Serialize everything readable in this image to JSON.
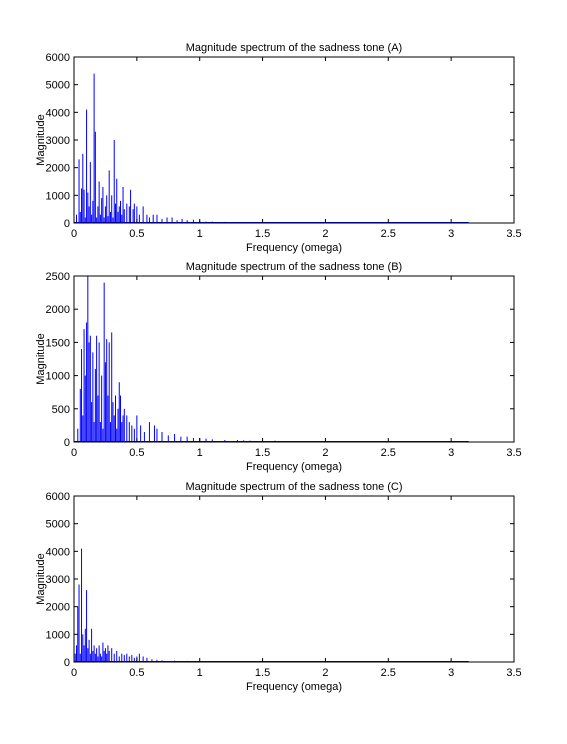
{
  "chart_data": [
    {
      "type": "bar",
      "title": "Magnitude spectrum of the sadness tone (A)",
      "xlabel": "Frequency (omega)",
      "ylabel": "Magnitude",
      "xlim": [
        0,
        3.5
      ],
      "ylim": [
        0,
        6000
      ],
      "xticks": [
        "0",
        "0.5",
        "1",
        "1.5",
        "2",
        "2.5",
        "3",
        "3.5"
      ],
      "yticks": [
        "0",
        "1000",
        "2000",
        "3000",
        "4000",
        "5000",
        "6000"
      ],
      "grid": false,
      "color": "#0000ff",
      "x": [
        0.02,
        0.04,
        0.05,
        0.06,
        0.07,
        0.08,
        0.09,
        0.1,
        0.11,
        0.12,
        0.13,
        0.14,
        0.15,
        0.16,
        0.17,
        0.18,
        0.19,
        0.2,
        0.21,
        0.22,
        0.23,
        0.24,
        0.25,
        0.26,
        0.27,
        0.28,
        0.29,
        0.3,
        0.31,
        0.32,
        0.33,
        0.34,
        0.35,
        0.36,
        0.37,
        0.38,
        0.39,
        0.4,
        0.42,
        0.44,
        0.45,
        0.47,
        0.48,
        0.5,
        0.52,
        0.55,
        0.58,
        0.6,
        0.63,
        0.66,
        0.7,
        0.74,
        0.78,
        0.82,
        0.86,
        0.9,
        0.95,
        1.0,
        1.05,
        1.1,
        1.2,
        1.3,
        1.4,
        1.6,
        1.8,
        2.0,
        2.4,
        2.8,
        3.14
      ],
      "y": [
        300,
        2300,
        400,
        1250,
        2500,
        1200,
        200,
        4100,
        1100,
        600,
        2200,
        300,
        800,
        5400,
        3300,
        200,
        600,
        1500,
        300,
        900,
        1300,
        200,
        600,
        1000,
        250,
        1900,
        400,
        1000,
        200,
        3000,
        700,
        1600,
        400,
        600,
        800,
        300,
        1300,
        500,
        700,
        600,
        1200,
        500,
        700,
        600,
        300,
        600,
        300,
        200,
        300,
        300,
        150,
        200,
        200,
        100,
        150,
        100,
        120,
        80,
        50,
        50,
        40,
        30,
        30,
        20,
        20,
        15,
        12,
        10,
        8
      ]
    },
    {
      "type": "bar",
      "title": "Magnitude spectrum of the sadness tone (B)",
      "xlabel": "Frequency (omega)",
      "ylabel": "Magnitude",
      "xlim": [
        0,
        3.5
      ],
      "ylim": [
        0,
        2500
      ],
      "xticks": [
        "0",
        "0.5",
        "1",
        "1.5",
        "2",
        "2.5",
        "3",
        "3.5"
      ],
      "yticks": [
        "0",
        "500",
        "1000",
        "1500",
        "2000",
        "2500"
      ],
      "grid": false,
      "color": "#0000ff",
      "x": [
        0.03,
        0.05,
        0.06,
        0.07,
        0.08,
        0.09,
        0.1,
        0.11,
        0.12,
        0.13,
        0.14,
        0.15,
        0.16,
        0.17,
        0.18,
        0.19,
        0.2,
        0.21,
        0.22,
        0.23,
        0.24,
        0.25,
        0.26,
        0.27,
        0.28,
        0.29,
        0.3,
        0.31,
        0.32,
        0.33,
        0.34,
        0.35,
        0.36,
        0.37,
        0.38,
        0.39,
        0.4,
        0.42,
        0.44,
        0.46,
        0.48,
        0.5,
        0.53,
        0.56,
        0.6,
        0.64,
        0.66,
        0.7,
        0.75,
        0.8,
        0.85,
        0.9,
        0.95,
        1.0,
        1.05,
        1.1,
        1.2,
        1.3,
        1.35,
        1.4,
        1.5,
        1.6,
        1.7,
        1.8,
        2.0,
        2.2,
        2.5,
        2.8,
        3.14
      ],
      "y": [
        200,
        800,
        1400,
        400,
        1700,
        1000,
        1800,
        2500,
        1500,
        1600,
        600,
        1350,
        300,
        1100,
        1600,
        700,
        1500,
        300,
        1000,
        200,
        2400,
        1200,
        1550,
        700,
        1500,
        300,
        1650,
        600,
        400,
        700,
        200,
        500,
        900,
        700,
        300,
        400,
        500,
        400,
        300,
        250,
        200,
        400,
        250,
        150,
        300,
        250,
        200,
        150,
        100,
        120,
        80,
        80,
        60,
        60,
        50,
        40,
        30,
        30,
        25,
        20,
        20,
        20,
        15,
        15,
        10,
        10,
        8,
        6,
        5
      ]
    },
    {
      "type": "bar",
      "title": "Magnitude spectrum of the sadness tone (C)",
      "xlabel": "Frequency (omega)",
      "ylabel": "Magnitude",
      "xlim": [
        0,
        3.5
      ],
      "ylim": [
        0,
        6000
      ],
      "xticks": [
        "0",
        "0.5",
        "1",
        "1.5",
        "2",
        "2.5",
        "3",
        "3.5"
      ],
      "yticks": [
        "0",
        "1000",
        "2000",
        "3000",
        "4000",
        "5000",
        "6000"
      ],
      "grid": false,
      "color": "#0000ff",
      "x": [
        0.01,
        0.02,
        0.03,
        0.04,
        0.05,
        0.06,
        0.07,
        0.08,
        0.09,
        0.1,
        0.11,
        0.12,
        0.13,
        0.14,
        0.15,
        0.16,
        0.17,
        0.18,
        0.19,
        0.2,
        0.21,
        0.22,
        0.23,
        0.24,
        0.25,
        0.26,
        0.27,
        0.28,
        0.3,
        0.32,
        0.34,
        0.36,
        0.38,
        0.4,
        0.42,
        0.44,
        0.46,
        0.48,
        0.5,
        0.52,
        0.55,
        0.58,
        0.62,
        0.66,
        0.7,
        0.8,
        0.9,
        1.0,
        1.2,
        1.5,
        2.0,
        2.5,
        3.14
      ],
      "y": [
        300,
        600,
        2000,
        2800,
        300,
        4100,
        1000,
        600,
        1200,
        2600,
        500,
        800,
        300,
        1200,
        400,
        600,
        300,
        500,
        200,
        600,
        300,
        200,
        700,
        400,
        500,
        300,
        600,
        400,
        500,
        300,
        400,
        200,
        300,
        250,
        300,
        200,
        250,
        150,
        200,
        300,
        200,
        150,
        100,
        80,
        60,
        50,
        40,
        30,
        20,
        15,
        10,
        8,
        6
      ]
    }
  ]
}
